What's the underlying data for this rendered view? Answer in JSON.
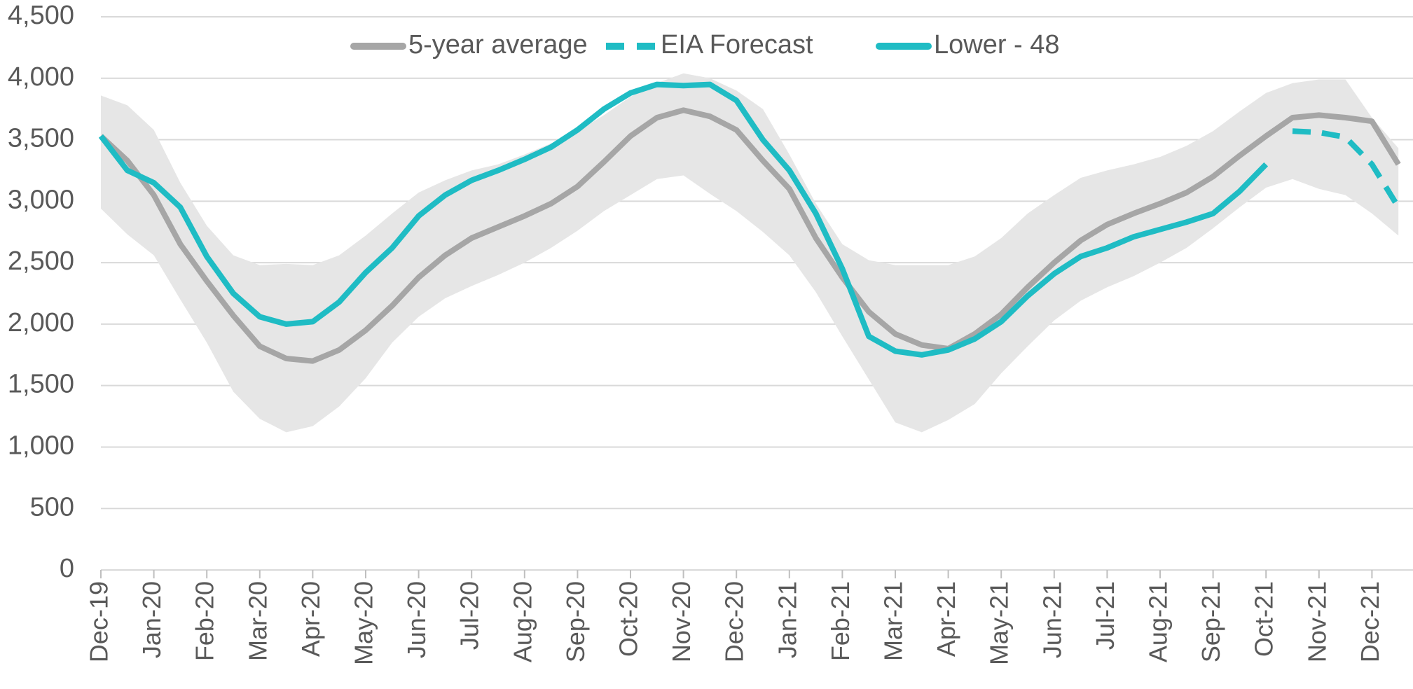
{
  "chart_data": {
    "type": "line",
    "categories": [
      "Dec-19",
      null,
      "Jan-20",
      null,
      "Feb-20",
      null,
      "Mar-20",
      null,
      "Apr-20",
      null,
      "May-20",
      null,
      "Jun-20",
      null,
      "Jul-20",
      null,
      "Aug-20",
      null,
      "Sep-20",
      null,
      "Oct-20",
      null,
      "Nov-20",
      null,
      "Dec-20",
      null,
      "Jan-21",
      null,
      "Feb-21",
      null,
      "Mar-21",
      null,
      "Apr-21",
      null,
      "May-21",
      null,
      "Jun-21",
      null,
      "Jul-21",
      null,
      "Aug-21",
      null,
      "Sep-21",
      null,
      "Oct-21",
      null,
      "Nov-21",
      null,
      "Dec-21",
      null
    ],
    "range": {
      "color": "#e6e6e6",
      "upper": [
        3860,
        3780,
        3580,
        3150,
        2800,
        2560,
        2480,
        2490,
        2480,
        2560,
        2720,
        2900,
        3070,
        3170,
        3250,
        3300,
        3380,
        3470,
        3570,
        3700,
        3850,
        3960,
        4040,
        4000,
        3900,
        3750,
        3380,
        2980,
        2650,
        2520,
        2480,
        2480,
        2480,
        2550,
        2700,
        2900,
        3050,
        3190,
        3250,
        3300,
        3360,
        3450,
        3570,
        3730,
        3880,
        3960,
        3990,
        3990,
        3680,
        3430
      ],
      "lower": [
        2940,
        2730,
        2560,
        2200,
        1850,
        1450,
        1230,
        1120,
        1170,
        1330,
        1560,
        1850,
        2060,
        2210,
        2310,
        2400,
        2500,
        2620,
        2760,
        2920,
        3050,
        3180,
        3210,
        3060,
        2920,
        2750,
        2560,
        2260,
        1900,
        1550,
        1200,
        1120,
        1220,
        1350,
        1600,
        1820,
        2030,
        2190,
        2300,
        2390,
        2500,
        2620,
        2780,
        2950,
        3110,
        3180,
        3100,
        3050,
        2900,
        2720
      ]
    },
    "series": [
      {
        "name": "5-year average",
        "color": "#a6a6a6",
        "dash": false,
        "values": [
          3530,
          3330,
          3050,
          2650,
          2350,
          2070,
          1820,
          1720,
          1700,
          1790,
          1950,
          2150,
          2380,
          2560,
          2700,
          2790,
          2880,
          2980,
          3120,
          3320,
          3530,
          3680,
          3740,
          3690,
          3580,
          3330,
          3100,
          2700,
          2380,
          2100,
          1920,
          1830,
          1800,
          1920,
          2080,
          2300,
          2500,
          2680,
          2810,
          2900,
          2980,
          3070,
          3200,
          3370,
          3530,
          3680,
          3700,
          3680,
          3650,
          3300
        ]
      },
      {
        "name": "EIA Forecast",
        "color": "#1fbcc4",
        "dash": true,
        "values": [
          null,
          null,
          null,
          null,
          null,
          null,
          null,
          null,
          null,
          null,
          null,
          null,
          null,
          null,
          null,
          null,
          null,
          null,
          null,
          null,
          null,
          null,
          null,
          null,
          null,
          null,
          null,
          null,
          null,
          null,
          null,
          null,
          null,
          null,
          null,
          null,
          null,
          null,
          null,
          null,
          null,
          null,
          null,
          null,
          null,
          3570,
          3560,
          3520,
          3300,
          2950
        ]
      },
      {
        "name": "Lower - 48",
        "color": "#1fbcc4",
        "dash": false,
        "values": [
          3530,
          3250,
          3150,
          2950,
          2550,
          2250,
          2060,
          2000,
          2020,
          2180,
          2420,
          2620,
          2880,
          3050,
          3170,
          3250,
          3340,
          3440,
          3580,
          3750,
          3880,
          3950,
          3940,
          3950,
          3820,
          3500,
          3250,
          2900,
          2450,
          1900,
          1780,
          1750,
          1790,
          1880,
          2020,
          2230,
          2410,
          2550,
          2620,
          2710,
          2770,
          2830,
          2900,
          3080,
          3300,
          null,
          null,
          null,
          null,
          null
        ]
      }
    ],
    "ylim": [
      0,
      4500
    ],
    "yticks": [
      0,
      500,
      {
        "value": 1000,
        "label": "1,000"
      },
      {
        "value": 1500,
        "label": "1,500"
      },
      {
        "value": 2000,
        "label": "2,000"
      },
      {
        "value": 2500,
        "label": "2,500"
      },
      {
        "value": 3000,
        "label": "3,000"
      },
      {
        "value": 3500,
        "label": "3,500"
      },
      {
        "value": 4000,
        "label": "4,000"
      },
      {
        "value": 4500,
        "label": "4,500"
      }
    ],
    "grid": true,
    "legend": "top"
  }
}
